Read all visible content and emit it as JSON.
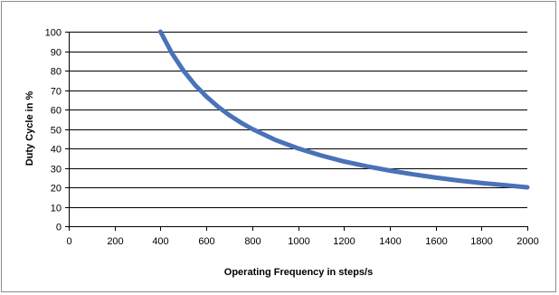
{
  "chart_data": {
    "type": "line",
    "title": "",
    "xlabel": "Operating Frequency in steps/s",
    "ylabel": "Duty Cycle in %",
    "xlim": [
      0,
      2000
    ],
    "ylim": [
      0,
      100
    ],
    "x_ticks": [
      0,
      200,
      400,
      600,
      800,
      1000,
      1200,
      1400,
      1600,
      1800,
      2000
    ],
    "y_ticks": [
      0,
      10,
      20,
      30,
      40,
      50,
      60,
      70,
      80,
      90,
      100
    ],
    "grid": "horizontal",
    "legend": "none",
    "series": [
      {
        "color": "#4a72b8",
        "x": [
          400,
          450,
          500,
          550,
          600,
          650,
          700,
          750,
          800,
          900,
          1000,
          1100,
          1200,
          1300,
          1400,
          1500,
          1600,
          1700,
          1800,
          1900,
          2000
        ],
        "y": [
          100,
          88.9,
          80,
          72.7,
          66.7,
          61.5,
          57.1,
          53.3,
          50,
          44.4,
          40,
          36.4,
          33.3,
          30.8,
          28.6,
          26.7,
          25,
          23.5,
          22.2,
          21.1,
          20
        ]
      }
    ]
  }
}
